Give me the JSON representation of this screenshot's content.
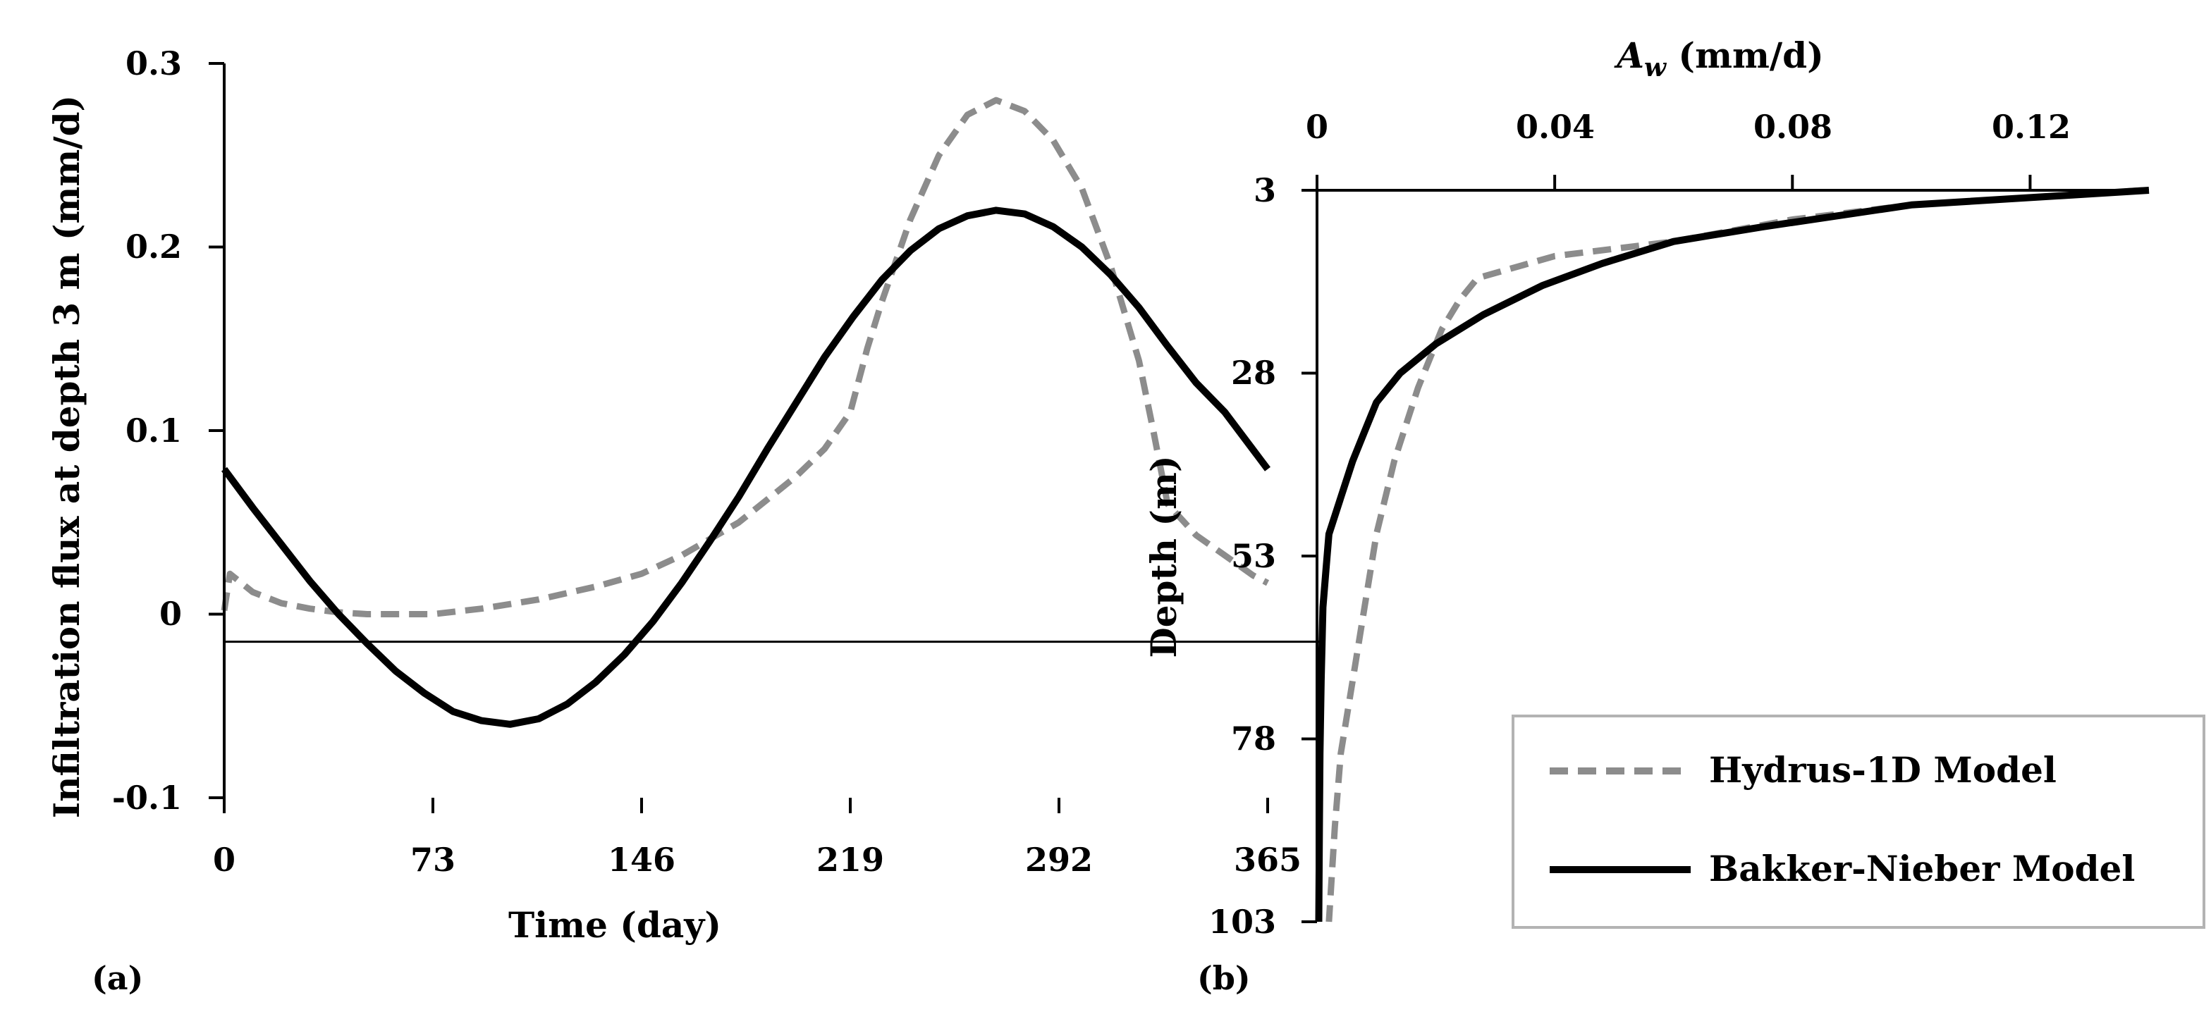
{
  "chart_data": [
    {
      "panel": "(a)",
      "type": "line",
      "xlabel": "Time (day)",
      "ylabel": "Infiltration flux at depth 3 m (mm/d)",
      "xlim": [
        0,
        365
      ],
      "ylim": [
        -0.1,
        0.3
      ],
      "x_ticks": [
        "0",
        "73",
        "146",
        "219",
        "292",
        "365"
      ],
      "y_ticks": [
        "-0.1",
        "0",
        "0.1",
        "0.2",
        "0.3"
      ],
      "reference_line_y": -0.015,
      "series": [
        {
          "name": "Hydrus-1D Model",
          "style": "dashed",
          "color": "#8c8c8c",
          "x": [
            0,
            2,
            10,
            20,
            30,
            40,
            50,
            60,
            73,
            90,
            110,
            130,
            146,
            160,
            180,
            200,
            210,
            219,
            225,
            230,
            240,
            250,
            260,
            270,
            280,
            290,
            300,
            310,
            320,
            325,
            330,
            340,
            350,
            360,
            365
          ],
          "y": [
            0.002,
            0.022,
            0.012,
            0.006,
            0.003,
            0.001,
            0.0,
            0.0,
            0.0,
            0.003,
            0.008,
            0.015,
            0.022,
            0.032,
            0.05,
            0.075,
            0.09,
            0.11,
            0.145,
            0.17,
            0.215,
            0.25,
            0.272,
            0.28,
            0.274,
            0.258,
            0.232,
            0.19,
            0.138,
            0.1,
            0.06,
            0.043,
            0.032,
            0.021,
            0.017
          ]
        },
        {
          "name": "Bakker-Nieber Model",
          "style": "solid",
          "color": "#000000",
          "x": [
            0,
            10,
            20,
            30,
            40,
            50,
            60,
            70,
            80,
            90,
            100,
            110,
            120,
            130,
            140,
            150,
            160,
            170,
            180,
            190,
            200,
            210,
            220,
            230,
            240,
            250,
            260,
            270,
            280,
            290,
            300,
            310,
            320,
            330,
            340,
            350,
            365
          ],
          "y": [
            0.079,
            0.058,
            0.038,
            0.018,
            0.0,
            -0.016,
            -0.031,
            -0.043,
            -0.053,
            -0.058,
            -0.06,
            -0.057,
            -0.049,
            -0.037,
            -0.022,
            -0.004,
            0.017,
            0.04,
            0.064,
            0.09,
            0.115,
            0.14,
            0.162,
            0.182,
            0.198,
            0.21,
            0.217,
            0.22,
            0.218,
            0.211,
            0.2,
            0.185,
            0.167,
            0.146,
            0.126,
            0.11,
            0.079
          ]
        }
      ]
    },
    {
      "panel": "(b)",
      "type": "line",
      "xlabel_main": "A",
      "xlabel_sub": "w",
      "xlabel_units": " (mm/d)",
      "ylabel": "Depth (m)",
      "xlim": [
        0,
        0.14
      ],
      "ylim": [
        3,
        103
      ],
      "y_inverted": true,
      "x_ticks": [
        "0",
        "0.04",
        "0.08",
        "0.12"
      ],
      "y_ticks": [
        "3",
        "28",
        "53",
        "78",
        "103"
      ],
      "series": [
        {
          "name": "Hydrus-1D Model",
          "style": "dashed",
          "color": "#8c8c8c",
          "depth": [
            3,
            4,
            5,
            7,
            10,
            12,
            15,
            18,
            22,
            26,
            30,
            35,
            40,
            50,
            60,
            70,
            80,
            90,
            103
          ],
          "value": [
            0.139,
            0.12,
            0.1,
            0.08,
            0.06,
            0.04,
            0.027,
            0.024,
            0.021,
            0.019,
            0.017,
            0.015,
            0.013,
            0.01,
            0.008,
            0.006,
            0.004,
            0.003,
            0.002
          ]
        },
        {
          "name": "Bakker-Nieber Model",
          "style": "solid",
          "color": "#000000",
          "depth": [
            3,
            5,
            8,
            10,
            13,
            16,
            20,
            24,
            28,
            32,
            36,
            40,
            45,
            50,
            55,
            60,
            70,
            80,
            90,
            103
          ],
          "value": [
            0.14,
            0.1,
            0.075,
            0.06,
            0.048,
            0.038,
            0.028,
            0.02,
            0.014,
            0.01,
            0.008,
            0.006,
            0.004,
            0.002,
            0.0015,
            0.001,
            0.0007,
            0.0005,
            0.0004,
            0.0003
          ]
        }
      ],
      "legend": {
        "placement": "bottom-right",
        "entries": [
          "Hydrus-1D Model",
          "Bakker-Nieber Model"
        ]
      }
    }
  ]
}
